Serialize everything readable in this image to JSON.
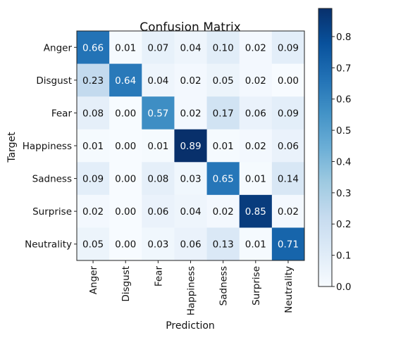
{
  "chart_data": {
    "type": "heatmap",
    "title": "Confusion Matrix",
    "xlabel": "Prediction",
    "ylabel": "Target",
    "row_labels": [
      "Anger",
      "Disgust",
      "Fear",
      "Happiness",
      "Sadness",
      "Surprise",
      "Neutrality"
    ],
    "col_labels": [
      "Anger",
      "Disgust",
      "Fear",
      "Happiness",
      "Sadness",
      "Surprise",
      "Neutrality"
    ],
    "values": [
      [
        0.66,
        0.01,
        0.07,
        0.04,
        0.1,
        0.02,
        0.09
      ],
      [
        0.23,
        0.64,
        0.04,
        0.02,
        0.05,
        0.02,
        0.0
      ],
      [
        0.08,
        0.0,
        0.57,
        0.02,
        0.17,
        0.06,
        0.09
      ],
      [
        0.01,
        0.0,
        0.01,
        0.89,
        0.01,
        0.02,
        0.06
      ],
      [
        0.09,
        0.0,
        0.08,
        0.03,
        0.65,
        0.01,
        0.14
      ],
      [
        0.02,
        0.0,
        0.06,
        0.04,
        0.02,
        0.85,
        0.02
      ],
      [
        0.05,
        0.0,
        0.03,
        0.06,
        0.13,
        0.01,
        0.71
      ]
    ],
    "value_labels": [
      [
        "0.66",
        "0.01",
        "0.07",
        "0.04",
        "0.10",
        "0.02",
        "0.09"
      ],
      [
        "0.23",
        "0.64",
        "0.04",
        "0.02",
        "0.05",
        "0.02",
        "0.00"
      ],
      [
        "0.08",
        "0.00",
        "0.57",
        "0.02",
        "0.17",
        "0.06",
        "0.09"
      ],
      [
        "0.01",
        "0.00",
        "0.01",
        "0.89",
        "0.01",
        "0.02",
        "0.06"
      ],
      [
        "0.09",
        "0.00",
        "0.08",
        "0.03",
        "0.65",
        "0.01",
        "0.14"
      ],
      [
        "0.02",
        "0.00",
        "0.06",
        "0.04",
        "0.02",
        "0.85",
        "0.02"
      ],
      [
        "0.05",
        "0.00",
        "0.03",
        "0.06",
        "0.13",
        "0.01",
        "0.71"
      ]
    ],
    "colormap": "Blues",
    "color_low": "#f7fbff",
    "color_high": "#08306b",
    "color_range": [
      0,
      0.89
    ],
    "text_threshold": 0.445,
    "text_color_dark": "#111111",
    "text_color_light": "#ffffff",
    "colorbar": {
      "ticks": [
        0.0,
        0.1,
        0.2,
        0.3,
        0.4,
        0.5,
        0.6,
        0.7,
        0.8
      ],
      "tick_labels": [
        "0.0",
        "0.1",
        "0.2",
        "0.3",
        "0.4",
        "0.5",
        "0.6",
        "0.7",
        "0.8"
      ]
    },
    "grid": false,
    "legend": "colorbar-right"
  }
}
